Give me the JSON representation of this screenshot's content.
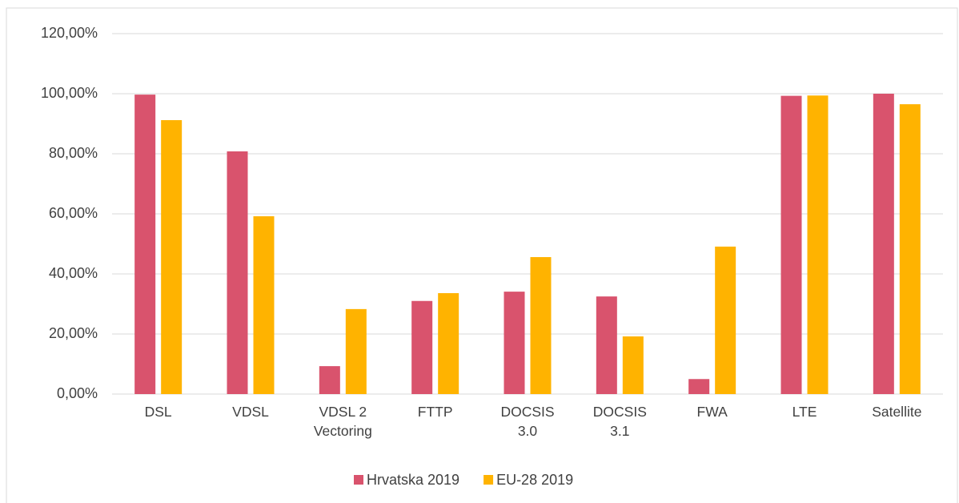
{
  "chart_data": {
    "type": "bar",
    "categories": [
      "DSL",
      "VDSL",
      "VDSL 2 Vectoring",
      "FTTP",
      "DOCSIS 3.0",
      "DOCSIS 3.1",
      "FWA",
      "LTE",
      "Satellite"
    ],
    "series": [
      {
        "name": "Hrvatska 2019",
        "color": "#d9536d",
        "values": [
          99.7,
          80.8,
          9.3,
          31.0,
          34.1,
          32.5,
          5.0,
          99.3,
          100.0
        ]
      },
      {
        "name": "EU-28 2019",
        "color": "#ffb300",
        "values": [
          91.2,
          59.2,
          28.3,
          33.6,
          45.6,
          19.2,
          49.1,
          99.4,
          96.5
        ]
      }
    ],
    "ylim": [
      0,
      120
    ],
    "yticks": [
      {
        "value": 0,
        "label": "0,00%"
      },
      {
        "value": 20,
        "label": "20,00%"
      },
      {
        "value": 40,
        "label": "40,00%"
      },
      {
        "value": 60,
        "label": "60,00%"
      },
      {
        "value": 80,
        "label": "80,00%"
      },
      {
        "value": 100,
        "label": "100,00%"
      },
      {
        "value": 120,
        "label": "120,00%"
      }
    ],
    "grid": true,
    "legend": "bottom"
  }
}
